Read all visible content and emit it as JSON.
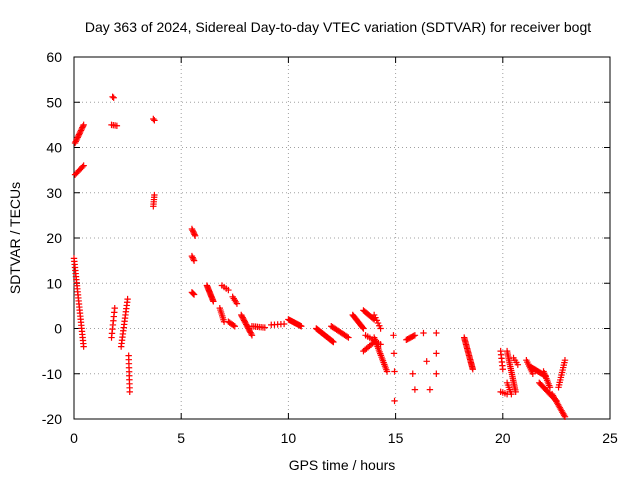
{
  "chart_data": {
    "type": "scatter",
    "title": "Day 363 of 2024, Sidereal Day-to-day VTEC variation (SDTVAR) for receiver bogt",
    "xlabel": "GPS time / hours",
    "ylabel": "SDTVAR / TECUs",
    "xlim": [
      0,
      25
    ],
    "ylim": [
      -20,
      60
    ],
    "xticks": [
      "0",
      "5",
      "10",
      "15",
      "20",
      "25"
    ],
    "yticks": [
      "-20",
      "-10",
      "0",
      "10",
      "20",
      "30",
      "40",
      "50",
      "60"
    ],
    "grid": true,
    "marker": "plus",
    "color": "#ff0000",
    "segments": [
      {
        "x0": 0.05,
        "y0": 41.0,
        "x1": 0.45,
        "y1": 45.0,
        "n": 14
      },
      {
        "x0": 0.05,
        "y0": 34.0,
        "x1": 0.45,
        "y1": 36.0,
        "n": 8
      },
      {
        "x0": 0.0,
        "y0": 15.5,
        "x1": 0.45,
        "y1": -4.0,
        "n": 30
      },
      {
        "x0": 1.75,
        "y0": 45.0,
        "x1": 2.0,
        "y1": 44.8,
        "n": 4
      },
      {
        "x0": 1.8,
        "y0": 51.2,
        "x1": 1.85,
        "y1": 51.0,
        "n": 2
      },
      {
        "x0": 1.75,
        "y0": -2.0,
        "x1": 1.9,
        "y1": 4.5,
        "n": 8
      },
      {
        "x0": 2.2,
        "y0": -4.0,
        "x1": 2.5,
        "y1": 6.5,
        "n": 16
      },
      {
        "x0": 2.55,
        "y0": -6.0,
        "x1": 2.6,
        "y1": -14.0,
        "n": 10
      },
      {
        "x0": 3.7,
        "y0": 46.3,
        "x1": 3.75,
        "y1": 46.0,
        "n": 2
      },
      {
        "x0": 3.7,
        "y0": 27.0,
        "x1": 3.75,
        "y1": 29.5,
        "n": 6
      },
      {
        "x0": 5.5,
        "y0": 22.0,
        "x1": 5.65,
        "y1": 20.5,
        "n": 6
      },
      {
        "x0": 5.5,
        "y0": 16.0,
        "x1": 5.6,
        "y1": 15.0,
        "n": 4
      },
      {
        "x0": 5.5,
        "y0": 8.0,
        "x1": 5.6,
        "y1": 7.5,
        "n": 4
      },
      {
        "x0": 6.2,
        "y0": 9.5,
        "x1": 6.5,
        "y1": 6.0,
        "n": 14
      },
      {
        "x0": 6.8,
        "y0": 4.5,
        "x1": 7.0,
        "y1": 1.5,
        "n": 8
      },
      {
        "x0": 6.9,
        "y0": 9.5,
        "x1": 7.2,
        "y1": 8.5,
        "n": 4
      },
      {
        "x0": 7.2,
        "y0": 1.5,
        "x1": 7.5,
        "y1": 0.5,
        "n": 6
      },
      {
        "x0": 7.4,
        "y0": 7.0,
        "x1": 7.6,
        "y1": 5.5,
        "n": 5
      },
      {
        "x0": 7.8,
        "y0": 3.0,
        "x1": 8.3,
        "y1": -1.5,
        "n": 16
      },
      {
        "x0": 8.3,
        "y0": 0.5,
        "x1": 8.9,
        "y1": 0.2,
        "n": 8
      },
      {
        "x0": 9.2,
        "y0": 0.8,
        "x1": 9.8,
        "y1": 1.0,
        "n": 5
      },
      {
        "x0": 10.0,
        "y0": 2.0,
        "x1": 10.6,
        "y1": 0.5,
        "n": 16
      },
      {
        "x0": 11.3,
        "y0": 0.0,
        "x1": 12.1,
        "y1": -3.0,
        "n": 24
      },
      {
        "x0": 12.0,
        "y0": 0.5,
        "x1": 12.8,
        "y1": -2.0,
        "n": 14
      },
      {
        "x0": 13.0,
        "y0": 3.0,
        "x1": 13.5,
        "y1": 0.0,
        "n": 14
      },
      {
        "x0": 13.5,
        "y0": 4.0,
        "x1": 14.0,
        "y1": 2.0,
        "n": 10
      },
      {
        "x0": 13.6,
        "y0": -1.5,
        "x1": 14.3,
        "y1": -3.5,
        "n": 8
      },
      {
        "x0": 13.5,
        "y0": -5.0,
        "x1": 14.0,
        "y1": -3.0,
        "n": 8
      },
      {
        "x0": 14.0,
        "y0": -2.0,
        "x1": 14.6,
        "y1": -9.5,
        "n": 20
      },
      {
        "x0": 14.0,
        "y0": 3.0,
        "x1": 14.3,
        "y1": 0.0,
        "n": 6
      },
      {
        "x0": 14.9,
        "y0": -1.5,
        "x1": 14.95,
        "y1": -9.5,
        "n": 3
      },
      {
        "x0": 14.95,
        "y0": -16.0,
        "x1": 15.0,
        "y1": -16.0,
        "n": 1
      },
      {
        "x0": 15.5,
        "y0": -2.5,
        "x1": 15.9,
        "y1": -1.5,
        "n": 8
      },
      {
        "x0": 15.8,
        "y0": -10.0,
        "x1": 15.9,
        "y1": -13.5,
        "n": 2
      },
      {
        "x0": 16.3,
        "y0": -1.0,
        "x1": 16.6,
        "y1": -13.5,
        "n": 3
      },
      {
        "x0": 16.9,
        "y0": -1.0,
        "x1": 16.9,
        "y1": -10.0,
        "n": 3
      },
      {
        "x0": 18.2,
        "y0": -2.0,
        "x1": 18.6,
        "y1": -9.0,
        "n": 24
      },
      {
        "x0": 19.9,
        "y0": -5.0,
        "x1": 20.0,
        "y1": -9.0,
        "n": 6
      },
      {
        "x0": 19.9,
        "y0": -14.0,
        "x1": 20.2,
        "y1": -14.5,
        "n": 4
      },
      {
        "x0": 20.2,
        "y0": -5.0,
        "x1": 20.6,
        "y1": -14.0,
        "n": 22
      },
      {
        "x0": 20.2,
        "y0": -12.0,
        "x1": 20.4,
        "y1": -14.5,
        "n": 6
      },
      {
        "x0": 20.5,
        "y0": -6.5,
        "x1": 20.7,
        "y1": -8.0,
        "n": 4
      },
      {
        "x0": 21.1,
        "y0": -7.0,
        "x1": 21.4,
        "y1": -10.0,
        "n": 8
      },
      {
        "x0": 21.3,
        "y0": -8.5,
        "x1": 22.0,
        "y1": -10.5,
        "n": 16
      },
      {
        "x0": 21.9,
        "y0": -9.5,
        "x1": 22.2,
        "y1": -13.0,
        "n": 10
      },
      {
        "x0": 21.7,
        "y0": -12.0,
        "x1": 22.5,
        "y1": -16.0,
        "n": 16
      },
      {
        "x0": 22.3,
        "y0": -14.5,
        "x1": 22.9,
        "y1": -19.5,
        "n": 16
      },
      {
        "x0": 22.6,
        "y0": -13.0,
        "x1": 22.9,
        "y1": -7.0,
        "n": 12
      }
    ]
  }
}
